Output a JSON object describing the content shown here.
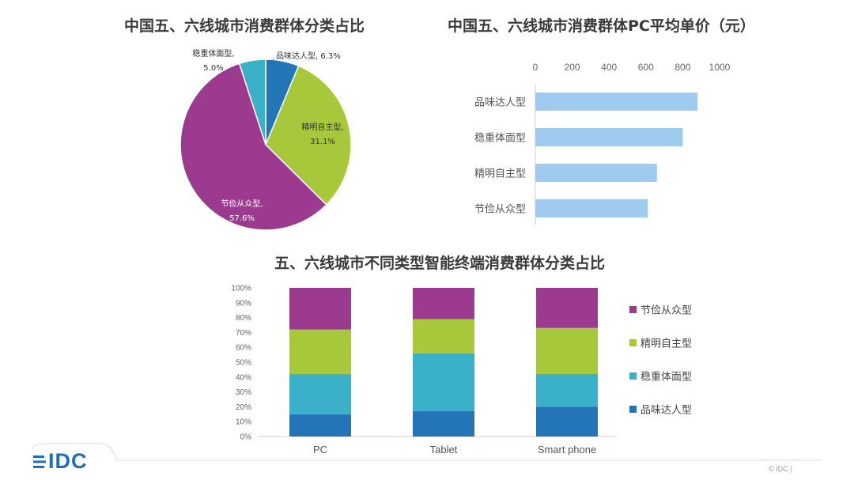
{
  "colors": {
    "savings": "#9b3a8f",
    "independent": "#a7c83a",
    "steady": "#3bb0c9",
    "taste": "#2474b8",
    "bar_blue": "#9ecbef"
  },
  "chart_data": [
    {
      "type": "pie",
      "title": "中国五、六线城市消费群体分类占比",
      "slices": [
        {
          "label": "品味达人型",
          "value": 6.3,
          "text": "品味达人型, 6.3%"
        },
        {
          "label": "精明自主型",
          "value": 31.1,
          "text1": "精明自主型,",
          "text2": "31.1%"
        },
        {
          "label": "节俭从众型",
          "value": 57.6,
          "text1": "节俭从众型,",
          "text2": "57.6%"
        },
        {
          "label": "稳重体面型",
          "value": 5.0,
          "text1": "稳重体面型,",
          "text2": "5.0%"
        }
      ]
    },
    {
      "type": "bar",
      "orientation": "horizontal",
      "title": "中国五、六线城市消费群体PC平均单价（元）",
      "categories": [
        "品味达人型",
        "稳重体面型",
        "精明自主型",
        "节俭从众型"
      ],
      "values": [
        880,
        800,
        660,
        610
      ],
      "xlim": [
        0,
        1000
      ],
      "xticks": [
        "0",
        "200",
        "400",
        "600",
        "800",
        "1000"
      ]
    },
    {
      "type": "bar",
      "stacked": true,
      "title": "五、六线城市不同类型智能终端消费群体分类占比",
      "categories": [
        "PC",
        "Tablet",
        "Smart phone"
      ],
      "yticks": [
        "0%",
        "10%",
        "20%",
        "30%",
        "40%",
        "50%",
        "60%",
        "70%",
        "80%",
        "90%",
        "100%"
      ],
      "ylim": [
        0,
        100
      ],
      "legend_position": "right",
      "series": [
        {
          "name": "品味达人型",
          "values": [
            15,
            17,
            20
          ]
        },
        {
          "name": "稳重体面型",
          "values": [
            27,
            39,
            22
          ]
        },
        {
          "name": "精明自主型",
          "values": [
            30,
            23,
            31
          ]
        },
        {
          "name": "节俭从众型",
          "values": [
            28,
            21,
            27
          ]
        }
      ]
    }
  ],
  "footer": {
    "logo": "IDC",
    "copyright": "© IDC |"
  }
}
